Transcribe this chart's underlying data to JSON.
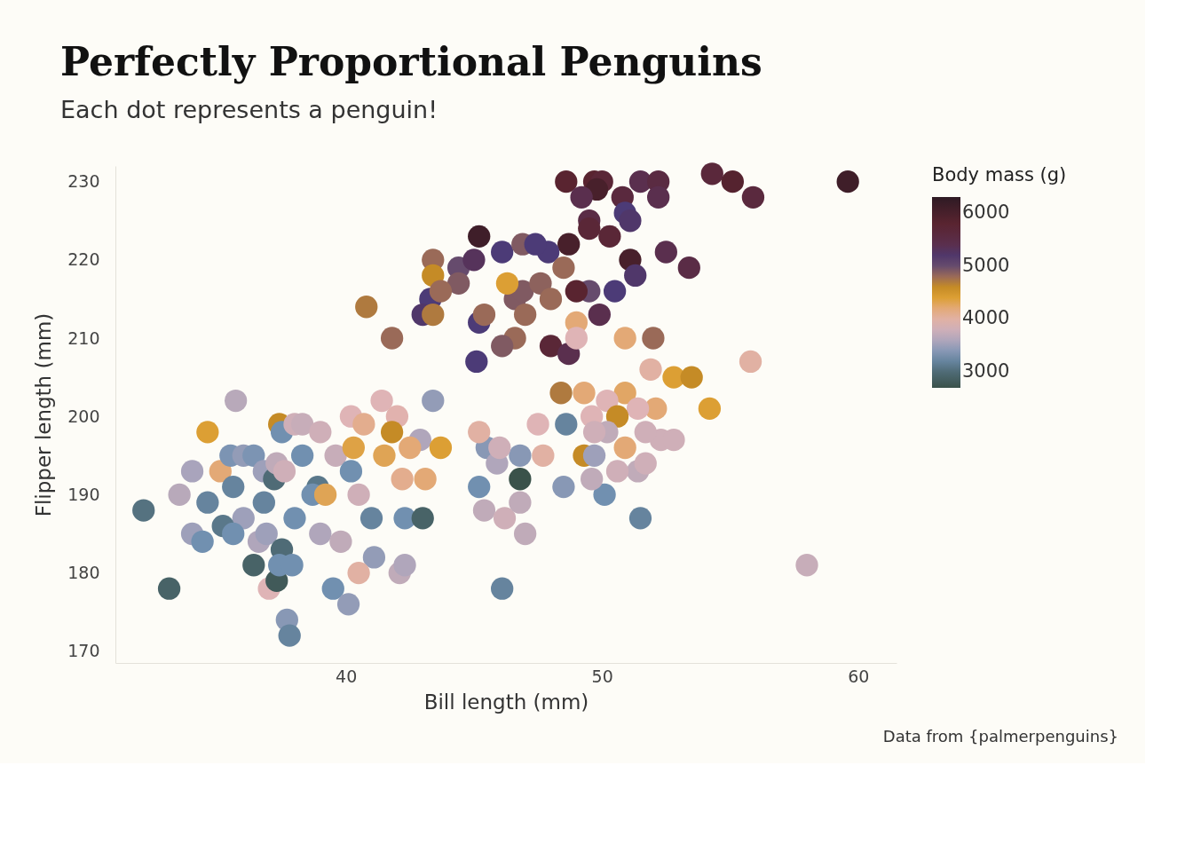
{
  "chart_data": {
    "type": "scatter",
    "title": "Perfectly Proportional Penguins",
    "subtitle": "Each dot represents a penguin!",
    "xlabel": "Bill length (mm)",
    "ylabel": "Flipper length (mm)",
    "legend_title": "Body mass (g)",
    "annotations": [
      "Data from {palmerpenguins}"
    ],
    "xlim": [
      31,
      61.5
    ],
    "xticks": [
      40,
      50,
      60
    ],
    "ylim": [
      168.5,
      232
    ],
    "yticks": [
      170,
      180,
      190,
      200,
      210,
      220,
      230
    ],
    "clim": [
      2700,
      6300
    ],
    "cticks": [
      3000,
      4000,
      5000,
      6000
    ],
    "grid": false,
    "marker": "circle",
    "x": [
      59.6,
      54.3,
      55.1,
      55.9,
      48.6,
      49.7,
      50.0,
      49.8,
      49.2,
      50.8,
      51.5,
      52.2,
      52.2,
      50.9,
      51.1,
      49.5,
      49.5,
      50.3,
      52.5,
      53.4,
      51.1,
      51.3,
      50.5,
      49.5,
      49.0,
      49.9,
      48.7,
      47.9,
      48.5,
      48.0,
      48.7,
      45.2,
      44.4,
      46.1,
      46.9,
      47.4,
      45.0,
      43.3,
      43.0,
      45.2,
      45.1,
      44.4,
      46.6,
      46.9,
      47.6,
      43.4,
      43.4,
      43.7,
      41.8,
      40.8,
      46.3,
      43.4,
      45.4,
      47.0,
      46.6,
      46.1,
      48.0,
      49.0,
      49.0,
      50.9,
      52.0,
      55.8,
      52.8,
      53.5,
      54.2,
      51.9,
      48.4,
      49.3,
      50.9,
      50.2,
      52.1,
      51.4,
      50.6,
      49.6,
      48.6,
      47.5,
      50.2,
      49.7,
      52.3,
      52.8,
      51.7,
      50.9,
      49.3,
      49.7,
      47.7,
      46.8,
      45.5,
      45.2,
      45.9,
      46.0,
      45.2,
      46.8,
      45.4,
      46.2,
      46.8,
      47.0,
      48.5,
      50.1,
      49.6,
      51.5,
      51.4,
      51.7,
      50.6,
      46.1,
      58.0,
      32.1,
      33.1,
      33.5,
      34.0,
      34.0,
      34.4,
      34.6,
      34.6,
      35.1,
      35.7,
      35.5,
      35.6,
      36.0,
      36.4,
      36.0,
      35.2,
      35.6,
      36.8,
      36.8,
      36.4,
      36.6,
      37.2,
      36.9,
      37.0,
      37.3,
      37.5,
      37.4,
      37.9,
      37.7,
      37.8,
      37.4,
      37.3,
      37.5,
      38.0,
      38.3,
      37.6,
      38.3,
      38.0,
      38.9,
      38.7,
      39.2,
      39.0,
      39.6,
      39.0,
      39.5,
      40.1,
      39.8,
      40.2,
      40.3,
      40.2,
      40.7,
      40.5,
      41.1,
      41.0,
      41.4,
      42.0,
      40.5,
      41.8,
      41.5,
      42.2,
      42.1,
      42.3,
      42.3,
      42.9,
      43.0,
      43.1,
      43.4,
      43.7,
      42.5
    ],
    "values": [
      230,
      231,
      230,
      228,
      230,
      230,
      230,
      229,
      228,
      228,
      230,
      230,
      228,
      226,
      225,
      225,
      224,
      223,
      221,
      219,
      220,
      218,
      216,
      216,
      216,
      213,
      222,
      221,
      219,
      209,
      208,
      223,
      219,
      221,
      222,
      222,
      220,
      215,
      213,
      212,
      207,
      217,
      215,
      216,
      217,
      220,
      218,
      216,
      210,
      214,
      217,
      213,
      213,
      213,
      210,
      209,
      215,
      212,
      210,
      210,
      210,
      207,
      205,
      205,
      201,
      206,
      203,
      203,
      203,
      202,
      201,
      201,
      200,
      200,
      199,
      199,
      198,
      198,
      197,
      197,
      198,
      196,
      195,
      195,
      195,
      195,
      196,
      198,
      194,
      196,
      191,
      192,
      188,
      187,
      189,
      185,
      191,
      190,
      192,
      187,
      193,
      194,
      193,
      178,
      181,
      188,
      178,
      190,
      193,
      185,
      184,
      198,
      189,
      193,
      202,
      195,
      191,
      195,
      195,
      187,
      186,
      185,
      193,
      189,
      181,
      184,
      192,
      185,
      178,
      179,
      183,
      181,
      181,
      174,
      172,
      199,
      194,
      198,
      199,
      199,
      193,
      195,
      187,
      191,
      190,
      190,
      185,
      195,
      198,
      178,
      176,
      184,
      193,
      196,
      200,
      199,
      190,
      182,
      187,
      202,
      200,
      180,
      198,
      195,
      192,
      180,
      181,
      187,
      197,
      187,
      192,
      202,
      196,
      196
    ],
    "cvalues": [
      6100,
      5650,
      5850,
      5600,
      5800,
      5800,
      5700,
      6000,
      5400,
      5600,
      5400,
      5550,
      5400,
      5100,
      5200,
      5500,
      5700,
      5700,
      5400,
      5500,
      6000,
      5200,
      5100,
      5000,
      5800,
      5400,
      6000,
      5100,
      4800,
      5700,
      5400,
      6100,
      5000,
      5100,
      4900,
      5100,
      5300,
      5100,
      5200,
      5100,
      5100,
      4900,
      4900,
      4900,
      4850,
      4800,
      4600,
      4800,
      4800,
      4700,
      4400,
      4700,
      4800,
      4800,
      4800,
      4900,
      4800,
      4200,
      3900,
      4200,
      4800,
      4000,
      4400,
      4600,
      4400,
      4000,
      4700,
      4200,
      4250,
      3900,
      4200,
      3900,
      4600,
      3900,
      3200,
      3900,
      3700,
      3800,
      3800,
      3800,
      3800,
      4200,
      4600,
      3500,
      4000,
      3400,
      3400,
      4000,
      3600,
      3800,
      3300,
      2700,
      3700,
      3800,
      3700,
      3700,
      3400,
      3300,
      3700,
      3200,
      3700,
      3800,
      3800,
      3200,
      3750,
      3050,
      2900,
      3650,
      3550,
      3500,
      3300,
      4400,
      3200,
      4200,
      3650,
      3350,
      3200,
      3450,
      3350,
      3500,
      3100,
      3300,
      3500,
      3200,
      2900,
      3600,
      3000,
      3500,
      3900,
      2800,
      3000,
      3300,
      3300,
      3400,
      3200,
      4600,
      3700,
      3300,
      3800,
      3750,
      3800,
      3300,
      3300,
      3100,
      3300,
      4300,
      3600,
      3750,
      3800,
      3300,
      3450,
      3700,
      3300,
      4350,
      3900,
      4100,
      3800,
      3450,
      3200,
      3900,
      3950,
      4000,
      4600,
      4300,
      4100,
      3700,
      3600,
      3300,
      3600,
      2900,
      4200,
      3450,
      4400,
      4200
    ]
  }
}
